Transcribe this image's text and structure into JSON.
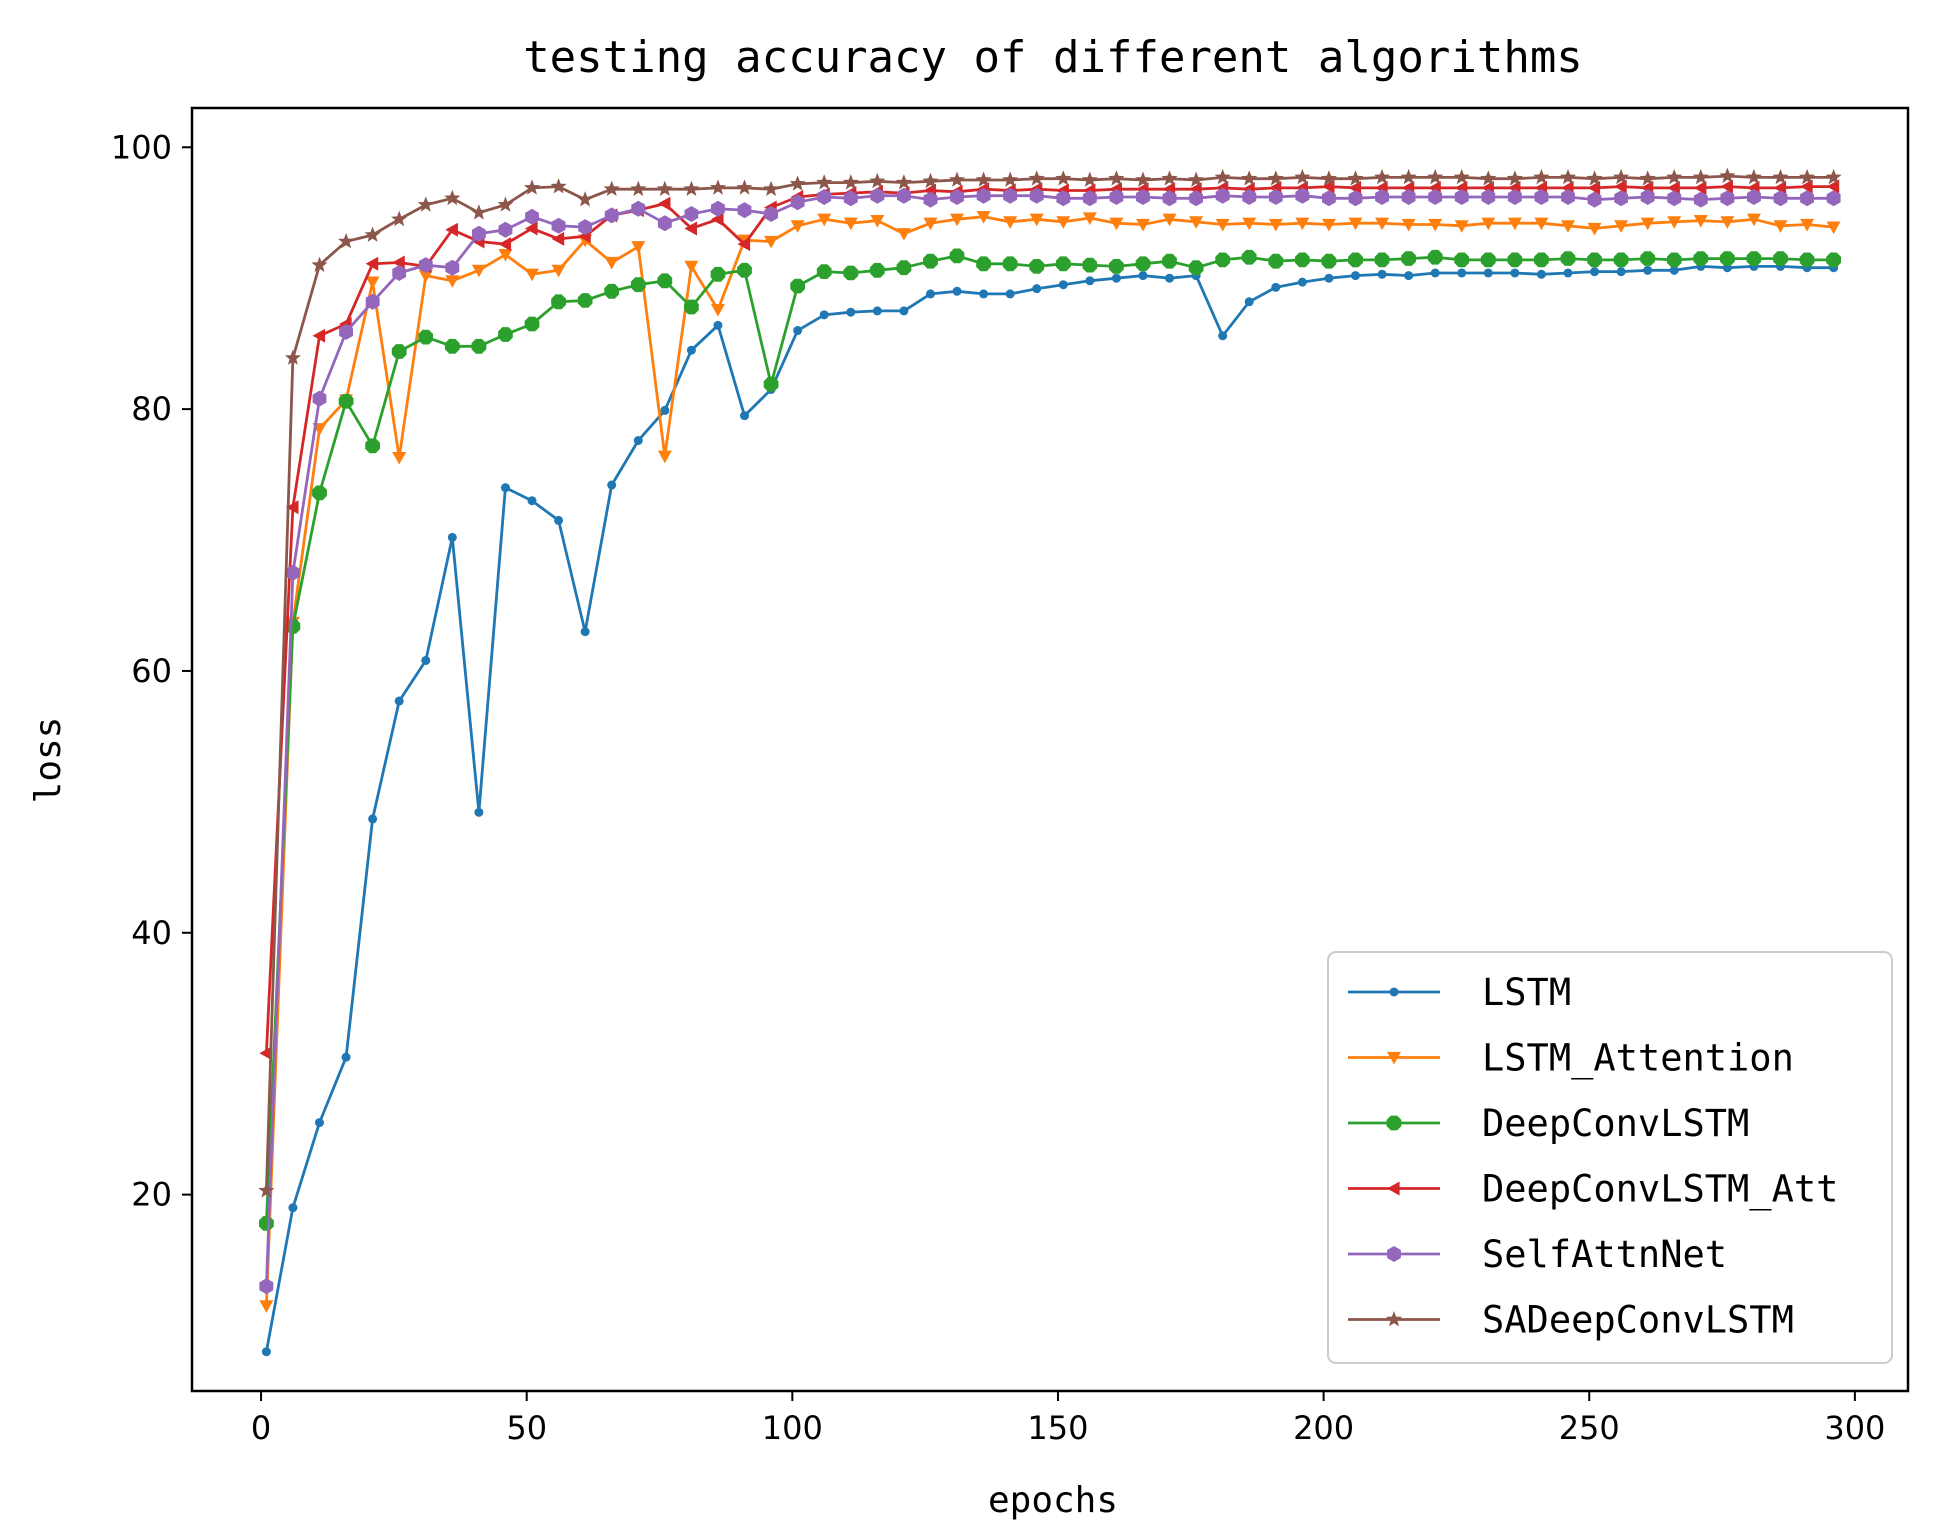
{
  "chart_data": {
    "type": "line",
    "title": "testing accuracy of different algorithms",
    "xlabel": "epochs",
    "ylabel": "loss",
    "xlim": [
      -13,
      310
    ],
    "ylim": [
      5,
      103
    ],
    "xticks": [
      0,
      50,
      100,
      150,
      200,
      250,
      300
    ],
    "yticks": [
      20,
      40,
      60,
      80,
      100
    ],
    "grid": false,
    "legend_position": "lower right",
    "x": [
      1,
      6,
      11,
      16,
      21,
      26,
      31,
      36,
      41,
      46,
      51,
      56,
      61,
      66,
      71,
      76,
      81,
      86,
      91,
      96,
      101,
      106,
      111,
      116,
      121,
      126,
      131,
      136,
      141,
      146,
      151,
      156,
      161,
      166,
      171,
      176,
      181,
      186,
      191,
      196,
      201,
      206,
      211,
      216,
      221,
      226,
      231,
      236,
      241,
      246,
      251,
      256,
      261,
      266,
      271,
      276,
      281,
      286,
      291,
      296
    ],
    "series": [
      {
        "name": "LSTM",
        "color": "#1f77b4",
        "marker": "point",
        "values": [
          8,
          19,
          25.5,
          30.5,
          48.7,
          57.7,
          60.8,
          70.2,
          49.2,
          74,
          73,
          71.5,
          63,
          74.2,
          77.6,
          79.9,
          84.5,
          86.4,
          79.5,
          81.5,
          86,
          87.2,
          87.4,
          87.5,
          87.5,
          88.8,
          89,
          88.8,
          88.8,
          89.2,
          89.5,
          89.8,
          90,
          90.2,
          90,
          90.2,
          85.6,
          88.2,
          89.3,
          89.7,
          90,
          90.2,
          90.3,
          90.2,
          90.4,
          90.4,
          90.4,
          90.4,
          90.3,
          90.4,
          90.5,
          90.5,
          90.6,
          90.6,
          90.9,
          90.8,
          90.9,
          90.9,
          90.8,
          90.8
        ]
      },
      {
        "name": "LSTM_Attention",
        "color": "#ff7f0e",
        "marker": "triangle_down",
        "values": [
          11.5,
          63.7,
          78.5,
          80.7,
          89.7,
          76.3,
          90.2,
          89.8,
          90.6,
          91.8,
          90.3,
          90.6,
          92.9,
          91.2,
          92.4,
          76.4,
          90.9,
          87.6,
          92.9,
          92.8,
          94,
          94.5,
          94.2,
          94.4,
          93.4,
          94.2,
          94.5,
          94.7,
          94.3,
          94.5,
          94.3,
          94.6,
          94.2,
          94.1,
          94.5,
          94.3,
          94.1,
          94.2,
          94.1,
          94.2,
          94.1,
          94.2,
          94.2,
          94.1,
          94.1,
          94,
          94.2,
          94.2,
          94.2,
          94,
          93.8,
          94,
          94.2,
          94.3,
          94.4,
          94.3,
          94.5,
          94,
          94.1,
          93.9
        ]
      },
      {
        "name": "DeepConvLSTM",
        "color": "#2ca02c",
        "marker": "octagon",
        "values": [
          17.8,
          63.4,
          73.6,
          80.6,
          77.2,
          84.4,
          85.5,
          84.8,
          84.8,
          85.7,
          86.5,
          88.2,
          88.3,
          89,
          89.5,
          89.8,
          87.8,
          90.3,
          90.6,
          81.9,
          89.4,
          90.5,
          90.4,
          90.6,
          90.8,
          91.3,
          91.7,
          91.1,
          91.1,
          90.9,
          91.1,
          91,
          90.9,
          91.1,
          91.3,
          90.8,
          91.4,
          91.6,
          91.3,
          91.4,
          91.3,
          91.4,
          91.4,
          91.5,
          91.6,
          91.4,
          91.4,
          91.4,
          91.4,
          91.5,
          91.4,
          91.4,
          91.5,
          91.4,
          91.5,
          91.5,
          91.5,
          91.5,
          91.4,
          91.4
        ]
      },
      {
        "name": "DeepConvLSTM_Att",
        "color": "#d62728",
        "marker": "triangle_left",
        "values": [
          30.8,
          72.5,
          85.6,
          86.5,
          91.1,
          91.2,
          90.9,
          93.7,
          92.8,
          92.6,
          93.8,
          93,
          93.2,
          94.8,
          95.2,
          95.7,
          93.8,
          94.5,
          92.6,
          95.4,
          96.2,
          96.4,
          96.5,
          96.6,
          96.5,
          96.7,
          96.6,
          96.8,
          96.7,
          96.8,
          96.7,
          96.7,
          96.8,
          96.8,
          96.8,
          96.8,
          96.9,
          96.8,
          96.9,
          96.9,
          97,
          96.9,
          96.9,
          96.9,
          96.9,
          96.9,
          96.9,
          96.9,
          96.9,
          96.9,
          96.9,
          97,
          96.9,
          96.9,
          96.9,
          97,
          96.9,
          96.9,
          97,
          97
        ]
      },
      {
        "name": "SelfAttnNet",
        "color": "#9467bd",
        "marker": "hexagon",
        "values": [
          13,
          67.5,
          80.8,
          85.9,
          88.2,
          90.4,
          91,
          90.8,
          93.4,
          93.7,
          94.7,
          94,
          93.9,
          94.8,
          95.3,
          94.2,
          94.9,
          95.3,
          95.2,
          94.9,
          95.8,
          96.2,
          96.1,
          96.3,
          96.3,
          96,
          96.2,
          96.3,
          96.3,
          96.3,
          96.1,
          96.1,
          96.2,
          96.2,
          96.1,
          96.1,
          96.3,
          96.2,
          96.2,
          96.3,
          96.1,
          96.1,
          96.2,
          96.2,
          96.2,
          96.2,
          96.2,
          96.2,
          96.2,
          96.2,
          96,
          96.1,
          96.2,
          96.1,
          96,
          96.1,
          96.2,
          96.1,
          96.1,
          96.1
        ]
      },
      {
        "name": "SADeepConvLSTM",
        "color": "#8c564b",
        "marker": "star",
        "values": [
          20.3,
          83.9,
          91,
          92.8,
          93.3,
          94.5,
          95.6,
          96.1,
          95,
          95.6,
          96.9,
          97,
          96,
          96.8,
          96.8,
          96.8,
          96.8,
          96.9,
          96.9,
          96.8,
          97.2,
          97.3,
          97.3,
          97.4,
          97.3,
          97.4,
          97.5,
          97.5,
          97.5,
          97.6,
          97.6,
          97.5,
          97.6,
          97.5,
          97.6,
          97.5,
          97.7,
          97.6,
          97.6,
          97.7,
          97.6,
          97.6,
          97.7,
          97.7,
          97.7,
          97.7,
          97.6,
          97.6,
          97.7,
          97.7,
          97.6,
          97.7,
          97.6,
          97.7,
          97.7,
          97.8,
          97.7,
          97.7,
          97.7,
          97.7
        ]
      }
    ]
  }
}
